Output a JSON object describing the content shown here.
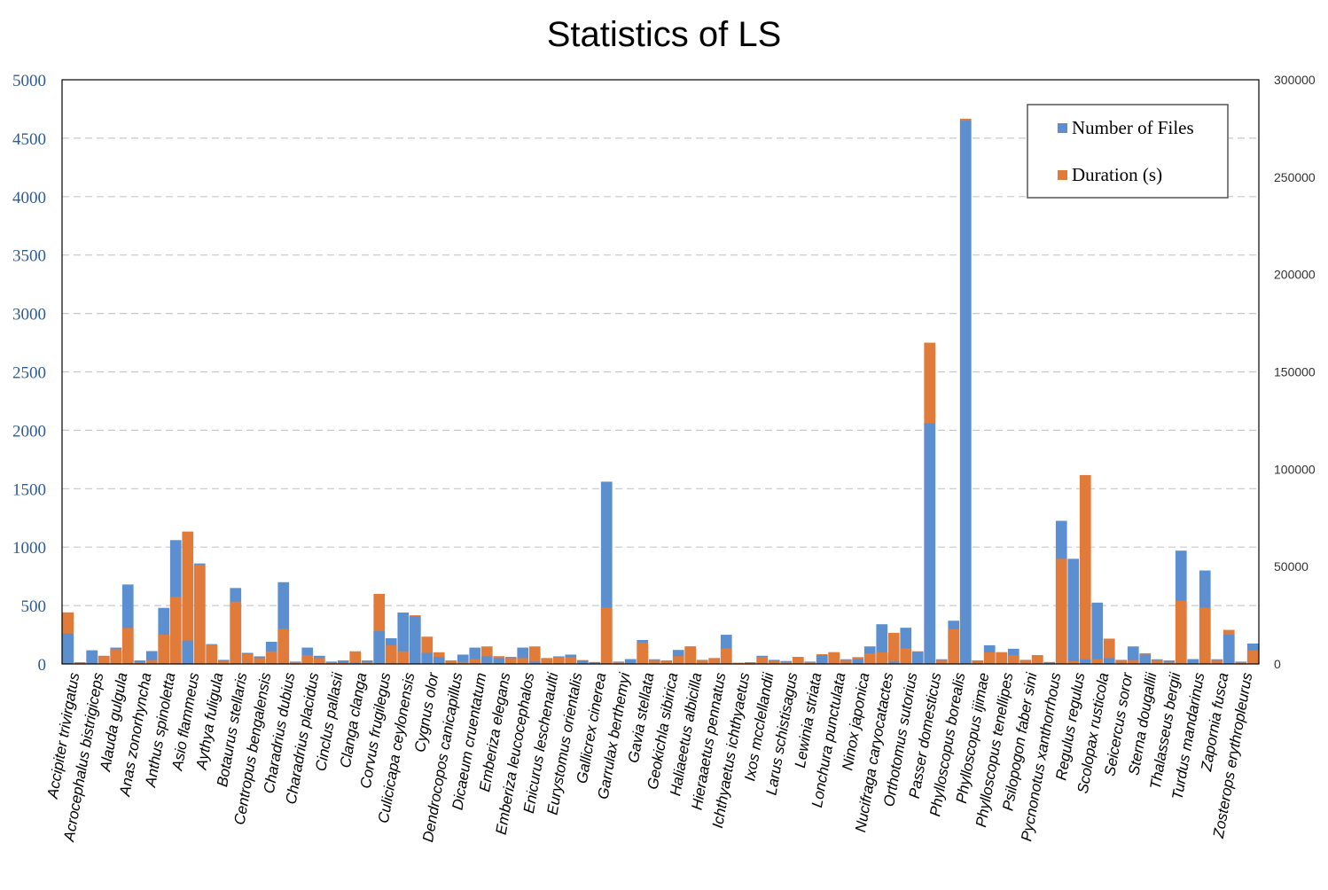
{
  "chart_data": {
    "type": "bar",
    "title": "Statistics of LS",
    "xlabel": "",
    "ylabel": "",
    "ylim": [
      0,
      5000
    ],
    "y2lim": [
      0,
      300000
    ],
    "yticks": [
      "0",
      "500",
      "1000",
      "1500",
      "2000",
      "2500",
      "3000",
      "3500",
      "4000",
      "4500",
      "5000"
    ],
    "y2ticks": [
      "0",
      "50000",
      "100000",
      "150000",
      "200000",
      "250000",
      "300000"
    ],
    "grid": true,
    "legend_position": "top-right",
    "colors": {
      "files": "#5b8fd0",
      "duration": "#e07b39",
      "grid": "#c8c8c8",
      "left_axis_text": "#2f5c91"
    },
    "categories": [
      "Accipiter trivirgatus",
      "Acrocephalus bistrigiceps",
      "Alauda gulgula",
      "Anas zonorhyncha",
      "Anthus spinoletta",
      "Asio flammeus",
      "Aythya fuligula",
      "Botaurus stellaris",
      "Centropus bengalensis",
      "Charadrius dubius",
      "Charadrius placidus",
      "Cinclus pallasii",
      "Clanga clanga",
      "Corvus frugilegus",
      "Culicicapa ceylonensis",
      "Cygnus olor",
      "Dendrocopos canicapillus",
      "Dicaeum cruentatum",
      "Emberiza elegans",
      "Emberiza leucocephalos",
      "Enicurus leschenaulti",
      "Eurystomus orientalis",
      "Gallicrex cinerea",
      "Garrulax berthemyi",
      "Gavia stellata",
      "Geokichla sibirica",
      "Haliaeetus albicilla",
      "Hieraaetus pennatus",
      "Ichthyaetus ichthyaetus",
      "Ixos mcclellandii",
      "Larus schistisagus",
      "Lewinia striata",
      "Lonchura punctulata",
      "Ninox japonica",
      "Nucifraga caryocatactes",
      "Orthotomus sutorius",
      "Passer domesticus",
      "Phylloscopus borealis",
      "Phylloscopus ijimae",
      "Phylloscopus tenellipes",
      "Psilopogon faber sini",
      "Pycnonotus xanthorrhous",
      "Regulus regulus",
      "Scolopax rusticola",
      "Seicercus soror",
      "Sterna dougallii",
      "Thalasseus bergii",
      "Turdus mandarinus",
      "Zapornia fusca",
      "Zosterops erythropleurus"
    ],
    "series": [
      {
        "name": "Number of Files",
        "axis": "left",
        "values": [
          [
            260,
            15
          ],
          [
            115,
            70
          ],
          [
            140,
            680
          ],
          [
            30,
            110
          ],
          [
            480,
            1060
          ],
          [
            200,
            860
          ],
          [
            170,
            35
          ],
          [
            650,
            95
          ],
          [
            65,
            190
          ],
          [
            700,
            20
          ],
          [
            140,
            70
          ],
          [
            20,
            30
          ],
          [
            10,
            30
          ],
          [
            280,
            220
          ],
          [
            440,
            410
          ],
          [
            95,
            60
          ],
          [
            30,
            80
          ],
          [
            140,
            65
          ],
          [
            50,
            60
          ],
          [
            140,
            20
          ],
          [
            50,
            65
          ],
          [
            80,
            30
          ],
          [
            15,
            1560
          ],
          [
            20,
            40
          ],
          [
            205,
            40
          ],
          [
            30,
            120
          ],
          [
            150,
            35
          ],
          [
            50,
            250
          ],
          [
            10,
            15
          ],
          [
            70,
            35
          ],
          [
            25,
            60
          ],
          [
            20,
            75
          ],
          [
            100,
            40
          ],
          [
            40,
            150
          ],
          [
            340,
            20
          ],
          [
            310,
            105
          ],
          [
            2060,
            40
          ],
          [
            370,
            4650
          ],
          [
            30,
            160
          ],
          [
            100,
            130
          ],
          [
            35,
            75
          ],
          [
            15,
            1225
          ],
          [
            900,
            40
          ],
          [
            525,
            50
          ],
          [
            35,
            150
          ],
          [
            80,
            40
          ],
          [
            30,
            970
          ],
          [
            40,
            800
          ],
          [
            40,
            250
          ],
          [
            20,
            175
          ]
        ]
      },
      {
        "name": "Duration (s)",
        "axis": "right",
        "values": [
          [
            26500,
            800
          ],
          [
            7000,
            4000
          ],
          [
            7500,
            18500
          ],
          [
            800,
            2000
          ],
          [
            15000,
            34500
          ],
          [
            68000,
            51000
          ],
          [
            10000,
            1500
          ],
          [
            32000,
            5000
          ],
          [
            3000,
            6500
          ],
          [
            18000,
            1000
          ],
          [
            4500,
            3000
          ],
          [
            800,
            500
          ],
          [
            6500,
            1000
          ],
          [
            36000,
            9500
          ],
          [
            6500,
            25000
          ],
          [
            14000,
            6000
          ],
          [
            1500,
            1000
          ],
          [
            2500,
            9000
          ],
          [
            4000,
            3000
          ],
          [
            3000,
            9000
          ],
          [
            3000,
            3500
          ],
          [
            3500,
            2000
          ],
          [
            1000,
            29000
          ],
          [
            1000,
            2500
          ],
          [
            11000,
            2000
          ],
          [
            1500,
            4000
          ],
          [
            9000,
            2000
          ],
          [
            3000,
            8000
          ],
          [
            500,
            800
          ],
          [
            3500,
            1500
          ],
          [
            1000,
            3500
          ],
          [
            1000,
            5000
          ],
          [
            6000,
            2000
          ],
          [
            3500,
            5500
          ],
          [
            6000,
            16000
          ],
          [
            8000,
            6500
          ],
          [
            165000,
            2000
          ],
          [
            18000,
            280000
          ],
          [
            1500,
            6000
          ],
          [
            6000,
            4500
          ],
          [
            2000,
            4500
          ],
          [
            1000,
            54000
          ],
          [
            1500,
            97000
          ],
          [
            2500,
            13000
          ],
          [
            2000,
            2000
          ],
          [
            5500,
            2000
          ],
          [
            1000,
            32500
          ],
          [
            2500,
            29000
          ],
          [
            2000,
            17500
          ],
          [
            1000,
            7000
          ]
        ]
      }
    ]
  }
}
